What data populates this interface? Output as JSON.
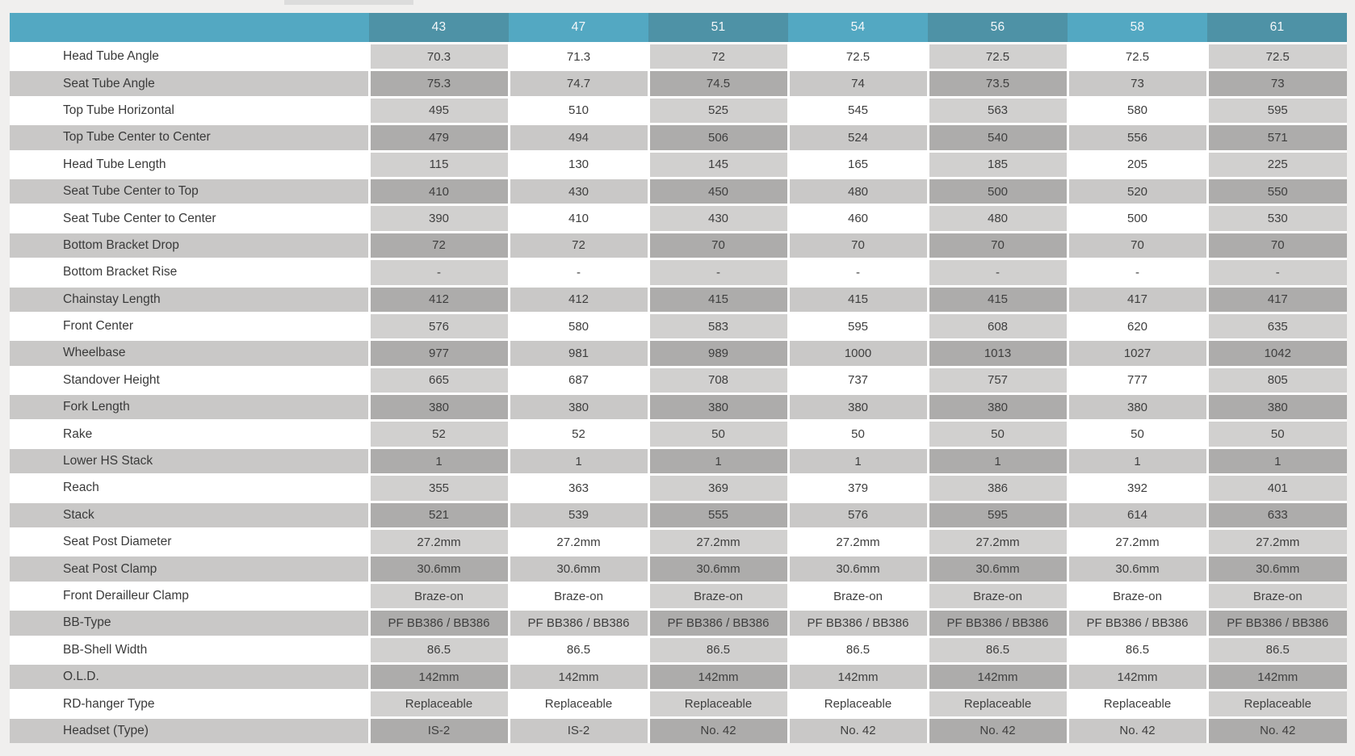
{
  "page": {
    "background_color": "#f0efee",
    "top_tab_color": "#dcdcdc"
  },
  "table": {
    "corner_label": "",
    "columns": [
      "43",
      "47",
      "51",
      "54",
      "56",
      "58",
      "61"
    ],
    "rows": [
      {
        "label": "Head Tube Angle",
        "values": [
          "70.3",
          "71.3",
          "72",
          "72.5",
          "72.5",
          "72.5",
          "72.5"
        ]
      },
      {
        "label": "Seat Tube Angle",
        "values": [
          "75.3",
          "74.7",
          "74.5",
          "74",
          "73.5",
          "73",
          "73"
        ]
      },
      {
        "label": "Top Tube Horizontal",
        "values": [
          "495",
          "510",
          "525",
          "545",
          "563",
          "580",
          "595"
        ]
      },
      {
        "label": "Top Tube Center to Center",
        "values": [
          "479",
          "494",
          "506",
          "524",
          "540",
          "556",
          "571"
        ]
      },
      {
        "label": "Head Tube Length",
        "values": [
          "115",
          "130",
          "145",
          "165",
          "185",
          "205",
          "225"
        ]
      },
      {
        "label": "Seat Tube Center to Top",
        "values": [
          "410",
          "430",
          "450",
          "480",
          "500",
          "520",
          "550"
        ]
      },
      {
        "label": "Seat Tube Center to Center",
        "values": [
          "390",
          "410",
          "430",
          "460",
          "480",
          "500",
          "530"
        ]
      },
      {
        "label": "Bottom Bracket Drop",
        "values": [
          "72",
          "72",
          "70",
          "70",
          "70",
          "70",
          "70"
        ]
      },
      {
        "label": "Bottom Bracket Rise",
        "values": [
          "-",
          "-",
          "-",
          "-",
          "-",
          "-",
          "-"
        ]
      },
      {
        "label": "Chainstay Length",
        "values": [
          "412",
          "412",
          "415",
          "415",
          "415",
          "417",
          "417"
        ]
      },
      {
        "label": "Front Center",
        "values": [
          "576",
          "580",
          "583",
          "595",
          "608",
          "620",
          "635"
        ]
      },
      {
        "label": "Wheelbase",
        "values": [
          "977",
          "981",
          "989",
          "1000",
          "1013",
          "1027",
          "1042"
        ]
      },
      {
        "label": "Standover Height",
        "values": [
          "665",
          "687",
          "708",
          "737",
          "757",
          "777",
          "805"
        ]
      },
      {
        "label": "Fork Length",
        "values": [
          "380",
          "380",
          "380",
          "380",
          "380",
          "380",
          "380"
        ]
      },
      {
        "label": "Rake",
        "values": [
          "52",
          "52",
          "50",
          "50",
          "50",
          "50",
          "50"
        ]
      },
      {
        "label": "Lower HS Stack",
        "values": [
          "1",
          "1",
          "1",
          "1",
          "1",
          "1",
          "1"
        ]
      },
      {
        "label": "Reach",
        "values": [
          "355",
          "363",
          "369",
          "379",
          "386",
          "392",
          "401"
        ]
      },
      {
        "label": "Stack",
        "values": [
          "521",
          "539",
          "555",
          "576",
          "595",
          "614",
          "633"
        ]
      },
      {
        "label": "Seat Post Diameter",
        "values": [
          "27.2mm",
          "27.2mm",
          "27.2mm",
          "27.2mm",
          "27.2mm",
          "27.2mm",
          "27.2mm"
        ]
      },
      {
        "label": "Seat Post Clamp",
        "values": [
          "30.6mm",
          "30.6mm",
          "30.6mm",
          "30.6mm",
          "30.6mm",
          "30.6mm",
          "30.6mm"
        ]
      },
      {
        "label": "Front Derailleur Clamp",
        "values": [
          "Braze-on",
          "Braze-on",
          "Braze-on",
          "Braze-on",
          "Braze-on",
          "Braze-on",
          "Braze-on"
        ]
      },
      {
        "label": "BB-Type",
        "values": [
          "PF BB386 / BB386",
          "PF BB386 / BB386",
          "PF BB386 / BB386",
          "PF BB386 / BB386",
          "PF BB386 / BB386",
          "PF BB386 / BB386",
          "PF BB386 / BB386"
        ]
      },
      {
        "label": "BB-Shell Width",
        "values": [
          "86.5",
          "86.5",
          "86.5",
          "86.5",
          "86.5",
          "86.5",
          "86.5"
        ]
      },
      {
        "label": "O.L.D.",
        "values": [
          "142mm",
          "142mm",
          "142mm",
          "142mm",
          "142mm",
          "142mm",
          "142mm"
        ]
      },
      {
        "label": "RD-hanger Type",
        "values": [
          "Replaceable",
          "Replaceable",
          "Replaceable",
          "Replaceable",
          "Replaceable",
          "Replaceable",
          "Replaceable"
        ]
      },
      {
        "label": "Headset (Type)",
        "values": [
          "IS-2",
          "IS-2",
          "No. 42",
          "No. 42",
          "No. 42",
          "No. 42",
          "No. 42"
        ]
      }
    ],
    "colors": {
      "header_light_teal": "#53a8c2",
      "header_dark_teal": "#4e92a6",
      "row_white": "#ffffff",
      "row_white_dark_col": "#d1d0cf",
      "row_gray": "#c9c8c7",
      "row_gray_dark_col": "#adacab",
      "separator": "#ffffff",
      "text": "#3e3e3e",
      "header_text": "#f3f7f9"
    }
  }
}
